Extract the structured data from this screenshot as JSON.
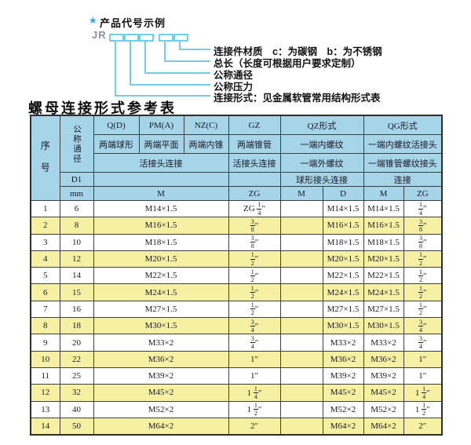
{
  "colors": {
    "header": "#a6d4e9",
    "alt": "#f6f1a2",
    "cyan": "#72cde8",
    "star": "#25a9e0",
    "border": "#3f3f3f",
    "text": "#1a1a24",
    "jr": "#8a9199"
  },
  "diagram": {
    "star": "★",
    "title": "产品代号示例",
    "prefix": "JR",
    "separator": "-",
    "labels": [
      "连接件材质　c：为碳钢　b：为不锈钢",
      "总长（长度可根据用户要求定制）",
      "公称通径",
      "公称压力",
      "连接形式：见金属软管常用结构形式表"
    ]
  },
  "heading": "螺母连接形式参考表",
  "table": {
    "header": {
      "seq": "序号",
      "nominal_diameter": "公称通径",
      "d1": "D1",
      "mm": "mm",
      "q": "Q(D)",
      "q_sub": "两端球形",
      "pm": "PM(A)",
      "pm_sub": "两端平面",
      "nz": "NZ(C)",
      "nz_sub": "两端内锥",
      "union_joint": "活接头连接",
      "gz": "GZ",
      "gz_sub": "两端锥管",
      "gz_sub2": "活接头连接",
      "qz": "QZ形式",
      "qz_sub": "一端内螺纹",
      "qz_sub2": "一端外螺纹",
      "qz_sub3": "球形接头连接",
      "qg": "QG形式",
      "qg_sub": "一端内螺纹活接头",
      "qg_sub2": "一端锥管螺纹接头",
      "qg_sub3": "连接",
      "m_main": "M",
      "zg_gz": "ZG",
      "m_qz": "M",
      "d_qz": "D",
      "m_qg": "M",
      "zg_qg": "ZG"
    },
    "rows": [
      [
        "1",
        "6",
        "M14×1.5",
        "ZG 1/4″",
        "",
        "M14×1.5",
        "M14×1.5",
        "1/4″"
      ],
      [
        "2",
        "8",
        "M16×1.5",
        "3/8″",
        "",
        "M16×1.5",
        "M16×1.5",
        "3/8″"
      ],
      [
        "3",
        "10",
        "M18×1.5",
        "3/8″",
        "",
        "M18×1.5",
        "M18×1.5",
        "3/8″"
      ],
      [
        "4",
        "12",
        "M20×1.5",
        "1/2″",
        "",
        "M20×1.5",
        "M20×1.5",
        "1/2″"
      ],
      [
        "5",
        "14",
        "M22×1.5",
        "1/2″",
        "",
        "M22×1.5",
        "M22×1.5",
        "1/2″"
      ],
      [
        "6",
        "15",
        "M24×1.5",
        "1/2″",
        "",
        "M24×1.5",
        "M24×1.5",
        "1/2″"
      ],
      [
        "7",
        "16",
        "M27×1.5",
        "1/2″",
        "",
        "M27×1.5",
        "M27×1.5",
        "1/2″"
      ],
      [
        "8",
        "18",
        "M30×1.5",
        "3/4″",
        "",
        "M30×1.5",
        "M30×1.5",
        "3/4″"
      ],
      [
        "9",
        "20",
        "M33×2",
        "3/4″",
        "",
        "M33×2",
        "M33×2",
        "3/4″"
      ],
      [
        "10",
        "22",
        "M36×2",
        "1″",
        "",
        "M36×2",
        "M36×2",
        "1″"
      ],
      [
        "11",
        "25",
        "M39×2",
        "1″",
        "",
        "M39×2",
        "M39×2",
        "1″"
      ],
      [
        "12",
        "32",
        "M45×2",
        "1 1/4″",
        "",
        "M45×2",
        "M45×2",
        "1 1/4″"
      ],
      [
        "13",
        "40",
        "M52×2",
        "1 1/2″",
        "",
        "M52×2",
        "M52×2",
        "1 1/2″"
      ],
      [
        "14",
        "50",
        "M64×2",
        "2″",
        "",
        "M64×2",
        "M64×2",
        "2″"
      ]
    ]
  }
}
